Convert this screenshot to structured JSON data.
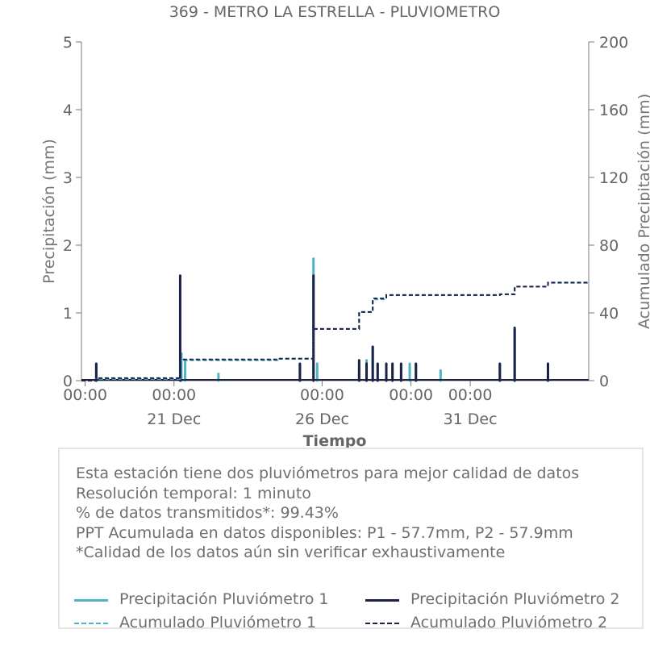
{
  "chart_data": {
    "type": "line",
    "title": "369 - METRO LA ESTRELLA - PLUVIOMETRO",
    "xlabel": "Tiempo",
    "ylabel_left": "Precipitación (mm)",
    "ylabel_right": "Acumulado Precipitación (mm)",
    "x_range": [
      "2021-12-17T21:00",
      "2022-01-04T00:00"
    ],
    "ylim_left": [
      0,
      5
    ],
    "ylim_right": [
      0,
      200
    ],
    "left_ticks": [
      "0",
      "1",
      "2",
      "3",
      "4",
      "5"
    ],
    "right_ticks": [
      "0",
      "40",
      "80",
      "120",
      "160",
      "200"
    ],
    "x_ticks": [
      {
        "t": "2021-12-18T00:00",
        "label": "00:00",
        "sublabel": ""
      },
      {
        "t": "2021-12-21T00:00",
        "label": "00:00",
        "sublabel": "21 Dec"
      },
      {
        "t": "2021-12-26T00:00",
        "label": "00:00",
        "sublabel": "26 Dec"
      },
      {
        "t": "2021-12-29T00:00",
        "label": "00:00",
        "sublabel": ""
      },
      {
        "t": "2021-12-31T00:00",
        "label": "00:00",
        "sublabel": "31 Dec"
      }
    ],
    "grid": false,
    "series": [
      {
        "name": "Precipitación Pluviómetro 1",
        "axis": "left",
        "color": "#4fb3c3",
        "style": "solid",
        "points": [
          [
            "2021-12-18T09:00",
            0.25
          ],
          [
            "2021-12-21T06:00",
            0.4
          ],
          [
            "2021-12-21T09:00",
            0.3
          ],
          [
            "2021-12-22T12:00",
            0.1
          ],
          [
            "2021-12-25T06:00",
            0.25
          ],
          [
            "2021-12-25T17:00",
            1.8
          ],
          [
            "2021-12-25T20:00",
            0.25
          ],
          [
            "2021-12-27T06:00",
            0.2
          ],
          [
            "2021-12-27T12:00",
            0.3
          ],
          [
            "2021-12-27T17:00",
            0.5
          ],
          [
            "2021-12-27T21:00",
            0.25
          ],
          [
            "2021-12-28T04:00",
            0.25
          ],
          [
            "2021-12-28T09:00",
            0.25
          ],
          [
            "2021-12-28T16:00",
            0.25
          ],
          [
            "2021-12-28T23:00",
            0.25
          ],
          [
            "2021-12-29T04:00",
            0.25
          ],
          [
            "2021-12-30T00:00",
            0.15
          ],
          [
            "2022-01-01T00:00",
            0.25
          ],
          [
            "2022-01-01T12:00",
            0.75
          ],
          [
            "2022-01-02T15:00",
            0.25
          ]
        ]
      },
      {
        "name": "Precipitación Pluviómetro 2",
        "axis": "left",
        "color": "#1c2145",
        "style": "solid",
        "points": [
          [
            "2021-12-18T09:00",
            0.25
          ],
          [
            "2021-12-21T05:00",
            1.55
          ],
          [
            "2021-12-25T06:00",
            0.25
          ],
          [
            "2021-12-25T17:00",
            1.55
          ],
          [
            "2021-12-27T06:00",
            0.3
          ],
          [
            "2021-12-27T12:00",
            0.25
          ],
          [
            "2021-12-27T17:00",
            0.5
          ],
          [
            "2021-12-27T21:00",
            0.25
          ],
          [
            "2021-12-28T04:00",
            0.25
          ],
          [
            "2021-12-28T09:00",
            0.25
          ],
          [
            "2021-12-28T16:00",
            0.25
          ],
          [
            "2021-12-29T04:00",
            0.25
          ],
          [
            "2022-01-01T00:00",
            0.25
          ],
          [
            "2022-01-01T12:00",
            0.78
          ],
          [
            "2022-01-02T15:00",
            0.25
          ]
        ]
      },
      {
        "name": "Acumulado Pluviómetro 1",
        "axis": "right",
        "color": "#4fb3c3",
        "style": "dashed",
        "points": [
          [
            "2021-12-17T21:00",
            0
          ],
          [
            "2021-12-18T09:00",
            0
          ],
          [
            "2021-12-18T09:00",
            1
          ],
          [
            "2021-12-21T05:00",
            1
          ],
          [
            "2021-12-21T05:00",
            12
          ],
          [
            "2021-12-24T12:00",
            12
          ],
          [
            "2021-12-24T12:00",
            13
          ],
          [
            "2021-12-25T17:00",
            13
          ],
          [
            "2021-12-25T17:00",
            30.5
          ],
          [
            "2021-12-27T06:00",
            30.5
          ],
          [
            "2021-12-27T06:00",
            40.5
          ],
          [
            "2021-12-27T17:00",
            40.5
          ],
          [
            "2021-12-27T17:00",
            48
          ],
          [
            "2021-12-28T04:00",
            48
          ],
          [
            "2021-12-28T04:00",
            50.5
          ],
          [
            "2022-01-01T00:00",
            50.5
          ],
          [
            "2022-01-01T00:00",
            51
          ],
          [
            "2022-01-01T12:00",
            51
          ],
          [
            "2022-01-01T12:00",
            55.5
          ],
          [
            "2022-01-02T15:00",
            55.5
          ],
          [
            "2022-01-02T15:00",
            57.7
          ],
          [
            "2022-01-04T00:00",
            57.7
          ]
        ]
      },
      {
        "name": "Acumulado Pluviómetro 2",
        "axis": "right",
        "color": "#1c2145",
        "style": "dashed",
        "points": [
          [
            "2021-12-17T21:00",
            0
          ],
          [
            "2021-12-18T09:00",
            0
          ],
          [
            "2021-12-18T09:00",
            1.5
          ],
          [
            "2021-12-21T05:00",
            1.5
          ],
          [
            "2021-12-21T05:00",
            12.5
          ],
          [
            "2021-12-24T12:00",
            12.5
          ],
          [
            "2021-12-24T12:00",
            13
          ],
          [
            "2021-12-25T17:00",
            13
          ],
          [
            "2021-12-25T17:00",
            30.5
          ],
          [
            "2021-12-27T06:00",
            30.5
          ],
          [
            "2021-12-27T06:00",
            40.5
          ],
          [
            "2021-12-27T17:00",
            40.5
          ],
          [
            "2021-12-27T17:00",
            48.5
          ],
          [
            "2021-12-28T04:00",
            48.5
          ],
          [
            "2021-12-28T04:00",
            50.5
          ],
          [
            "2022-01-01T00:00",
            50.5
          ],
          [
            "2022-01-01T00:00",
            51
          ],
          [
            "2022-01-01T12:00",
            51
          ],
          [
            "2022-01-01T12:00",
            55.5
          ],
          [
            "2022-01-02T15:00",
            55.5
          ],
          [
            "2022-01-02T15:00",
            57.9
          ],
          [
            "2022-01-04T00:00",
            57.9
          ]
        ]
      }
    ]
  },
  "info": {
    "lines": [
      "Esta estación tiene dos pluviómetros para mejor calidad de datos",
      "Resolución temporal: 1 minuto",
      "% de datos transmitidos*: 99.43%",
      "PPT Acumulada en datos disponibles: P1 - 57.7mm, P2 - 57.9mm",
      "*Calidad de los datos aún sin verificar exhaustivamente"
    ]
  },
  "legend": {
    "items": [
      {
        "label": "Precipitación Pluviómetro 1",
        "color": "#4fb3c3",
        "style": "solid"
      },
      {
        "label": "Precipitación Pluviómetro 2",
        "color": "#1c2145",
        "style": "solid"
      },
      {
        "label": "Acumulado Pluviómetro 1",
        "color": "#4fb3c3",
        "style": "dashed"
      },
      {
        "label": "Acumulado Pluviómetro 2",
        "color": "#1c2145",
        "style": "dashed"
      }
    ]
  }
}
